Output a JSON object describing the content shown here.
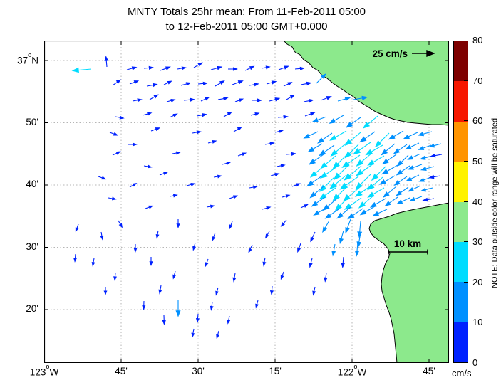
{
  "title": {
    "line1": "MNTY Totals 25hr mean: From 11-Feb-2011 05:00",
    "line2": "to 12-Feb-2011 05:00 GMT+0.000"
  },
  "axes": {
    "x_ticks": [
      {
        "px": 0,
        "label": "123°W"
      },
      {
        "px": 108,
        "label": "45'"
      },
      {
        "px": 216,
        "label": "30'"
      },
      {
        "px": 324,
        "label": "15'"
      },
      {
        "px": 432,
        "label": "122°W"
      },
      {
        "px": 540,
        "label": "45'"
      }
    ],
    "y_ticks": [
      {
        "px": 28,
        "label": "37°N"
      },
      {
        "px": 115.5,
        "label": "50'"
      },
      {
        "px": 203,
        "label": "40'"
      },
      {
        "px": 290.5,
        "label": "30'"
      },
      {
        "px": 378,
        "label": "20'"
      }
    ]
  },
  "colorbar": {
    "units": "cm/s",
    "note": "NOTE: Data outside color range will be saturated.",
    "ticks": [
      0,
      10,
      20,
      30,
      40,
      50,
      60,
      70,
      80
    ],
    "colors_bottom_to_top": [
      "#0022ff",
      "#0090ff",
      "#00dcff",
      "#8ce98c",
      "#fff200",
      "#ff9400",
      "#f61700",
      "#7e0000"
    ]
  },
  "map": {
    "land_color": "#8ce98c",
    "coast_color": "#000000",
    "grid_color": "#b5b5b5",
    "land_polygons": [
      [
        [
          336,
          0
        ],
        [
          341,
          5
        ],
        [
          348,
          9
        ],
        [
          352,
          16
        ],
        [
          359,
          20
        ],
        [
          364,
          27
        ],
        [
          371,
          31
        ],
        [
          377,
          38
        ],
        [
          384,
          42
        ],
        [
          390,
          49
        ],
        [
          397,
          53
        ],
        [
          404,
          59
        ],
        [
          411,
          64
        ],
        [
          419,
          69
        ],
        [
          426,
          74
        ],
        [
          434,
          79
        ],
        [
          441,
          85
        ],
        [
          449,
          90
        ],
        [
          457,
          95
        ],
        [
          465,
          100
        ],
        [
          474,
          104
        ],
        [
          483,
          108
        ],
        [
          492,
          111
        ],
        [
          501,
          113
        ],
        [
          511,
          115
        ],
        [
          521,
          116
        ],
        [
          532,
          117
        ],
        [
          544,
          118
        ],
        [
          556,
          118
        ],
        [
          568,
          119
        ],
        [
          568,
          0
        ]
      ],
      [
        [
          568,
          228
        ],
        [
          552,
          231
        ],
        [
          536,
          234
        ],
        [
          520,
          237
        ],
        [
          506,
          240
        ],
        [
          494,
          243
        ],
        [
          484,
          247
        ],
        [
          474,
          250
        ],
        [
          464,
          253
        ],
        [
          458,
          258
        ],
        [
          456,
          264
        ],
        [
          458,
          270
        ],
        [
          463,
          276
        ],
        [
          470,
          281
        ],
        [
          477,
          286
        ],
        [
          482,
          292
        ],
        [
          485,
          299
        ],
        [
          483,
          306
        ],
        [
          479,
          313
        ],
        [
          476,
          322
        ],
        [
          474,
          332
        ],
        [
          473,
          342
        ],
        [
          474,
          352
        ],
        [
          477,
          362
        ],
        [
          480,
          372
        ],
        [
          484,
          382
        ],
        [
          487,
          392
        ],
        [
          489,
          402
        ],
        [
          491,
          412
        ],
        [
          492,
          422
        ],
        [
          493,
          432
        ],
        [
          494,
          442
        ],
        [
          495,
          453
        ],
        [
          568,
          453
        ]
      ]
    ]
  },
  "annotations": {
    "speed_scale": {
      "label": "25 cm/s",
      "value_cm_s": 25
    },
    "distance_scale": {
      "label": "10 km",
      "value_km": 10
    }
  },
  "chart_data": {
    "type": "quiver-vector-map",
    "title": "MNTY Totals 25hr mean surface currents",
    "x_range": [
      "123°W",
      "121°41'W"
    ],
    "y_range": [
      "36°12'N",
      "37°03'N"
    ],
    "units": "cm/s",
    "coords_note": "arrows given as [x_px, y_px, direction_deg_ccw_from_east, speed_cm_s] in 568x453 plot space",
    "arrows": [
      [
        66,
        40,
        185,
        20
      ],
      [
        88,
        37,
        95,
        8
      ],
      [
        116,
        41,
        15,
        7
      ],
      [
        140,
        39,
        5,
        6
      ],
      [
        163,
        42,
        20,
        8
      ],
      [
        187,
        40,
        10,
        5
      ],
      [
        210,
        38,
        30,
        7
      ],
      [
        234,
        41,
        15,
        9
      ],
      [
        258,
        40,
        0,
        6
      ],
      [
        282,
        42,
        25,
        7
      ],
      [
        305,
        39,
        10,
        5
      ],
      [
        329,
        41,
        20,
        8
      ],
      [
        352,
        40,
        5,
        6
      ],
      [
        96,
        63,
        35,
        7
      ],
      [
        120,
        61,
        20,
        6
      ],
      [
        144,
        64,
        10,
        8
      ],
      [
        168,
        62,
        25,
        5
      ],
      [
        192,
        63,
        15,
        7
      ],
      [
        216,
        61,
        5,
        6
      ],
      [
        240,
        64,
        30,
        8
      ],
      [
        264,
        62,
        20,
        9
      ],
      [
        288,
        63,
        10,
        6
      ],
      [
        312,
        61,
        15,
        7
      ],
      [
        336,
        64,
        25,
        6
      ],
      [
        360,
        62,
        10,
        8
      ],
      [
        382,
        60,
        45,
        12
      ],
      [
        124,
        85,
        10,
        6
      ],
      [
        148,
        83,
        30,
        7
      ],
      [
        172,
        86,
        15,
        5
      ],
      [
        196,
        84,
        5,
        8
      ],
      [
        220,
        85,
        25,
        6
      ],
      [
        244,
        83,
        10,
        7
      ],
      [
        268,
        86,
        20,
        5
      ],
      [
        292,
        84,
        0,
        6
      ],
      [
        316,
        85,
        15,
        8
      ],
      [
        340,
        83,
        30,
        6
      ],
      [
        364,
        86,
        10,
        7
      ],
      [
        388,
        84,
        20,
        9
      ],
      [
        412,
        85,
        15,
        11
      ],
      [
        434,
        83,
        10,
        13
      ],
      [
        100,
        107,
        350,
        5
      ],
      [
        138,
        105,
        15,
        6
      ],
      [
        176,
        108,
        25,
        5
      ],
      [
        214,
        106,
        10,
        7
      ],
      [
        252,
        107,
        30,
        6
      ],
      [
        290,
        105,
        15,
        5
      ],
      [
        328,
        108,
        5,
        7
      ],
      [
        366,
        106,
        20,
        8
      ],
      [
        396,
        107,
        200,
        14
      ],
      [
        420,
        105,
        210,
        16
      ],
      [
        444,
        108,
        215,
        18
      ],
      [
        468,
        106,
        220,
        20
      ],
      [
        92,
        129,
        340,
        5
      ],
      [
        150,
        127,
        20,
        6
      ],
      [
        208,
        130,
        10,
        5
      ],
      [
        266,
        128,
        30,
        6
      ],
      [
        324,
        129,
        15,
        5
      ],
      [
        384,
        128,
        205,
        15
      ],
      [
        404,
        130,
        215,
        18
      ],
      [
        424,
        127,
        210,
        20
      ],
      [
        444,
        129,
        220,
        22
      ],
      [
        464,
        128,
        215,
        19
      ],
      [
        484,
        130,
        225,
        21
      ],
      [
        504,
        127,
        210,
        17
      ],
      [
        524,
        129,
        205,
        15
      ],
      [
        544,
        128,
        195,
        13
      ],
      [
        118,
        146,
        0,
        5
      ],
      [
        230,
        144,
        15,
        5
      ],
      [
        310,
        146,
        10,
        6
      ],
      [
        390,
        145,
        210,
        16
      ],
      [
        407,
        147,
        215,
        19
      ],
      [
        424,
        144,
        220,
        22
      ],
      [
        441,
        146,
        225,
        20
      ],
      [
        458,
        143,
        215,
        23
      ],
      [
        475,
        147,
        210,
        21
      ],
      [
        492,
        145,
        220,
        18
      ],
      [
        509,
        146,
        215,
        16
      ],
      [
        526,
        144,
        205,
        14
      ],
      [
        543,
        147,
        200,
        12
      ],
      [
        557,
        145,
        195,
        10
      ],
      [
        96,
        161,
        25,
        5
      ],
      [
        180,
        159,
        10,
        4
      ],
      [
        272,
        162,
        20,
        5
      ],
      [
        340,
        160,
        5,
        6
      ],
      [
        392,
        160,
        215,
        18
      ],
      [
        409,
        162,
        220,
        21
      ],
      [
        426,
        159,
        225,
        23
      ],
      [
        443,
        161,
        215,
        24
      ],
      [
        460,
        158,
        220,
        22
      ],
      [
        477,
        162,
        210,
        20
      ],
      [
        494,
        160,
        215,
        17
      ],
      [
        511,
        161,
        225,
        15
      ],
      [
        528,
        159,
        205,
        13
      ],
      [
        545,
        162,
        195,
        11
      ],
      [
        558,
        160,
        190,
        9
      ],
      [
        140,
        176,
        350,
        4
      ],
      [
        250,
        174,
        15,
        5
      ],
      [
        326,
        177,
        10,
        5
      ],
      [
        394,
        175,
        220,
        20
      ],
      [
        411,
        177,
        215,
        22
      ],
      [
        428,
        174,
        225,
        24
      ],
      [
        445,
        176,
        220,
        25
      ],
      [
        462,
        173,
        215,
        23
      ],
      [
        479,
        177,
        225,
        21
      ],
      [
        496,
        175,
        210,
        19
      ],
      [
        513,
        176,
        215,
        16
      ],
      [
        530,
        174,
        200,
        14
      ],
      [
        547,
        177,
        195,
        12
      ],
      [
        76,
        191,
        340,
        4
      ],
      [
        162,
        189,
        20,
        5
      ],
      [
        238,
        192,
        10,
        4
      ],
      [
        318,
        190,
        15,
        5
      ],
      [
        390,
        190,
        215,
        19
      ],
      [
        407,
        192,
        225,
        22
      ],
      [
        424,
        189,
        220,
        24
      ],
      [
        441,
        191,
        215,
        25
      ],
      [
        458,
        188,
        225,
        23
      ],
      [
        475,
        192,
        220,
        21
      ],
      [
        492,
        190,
        210,
        18
      ],
      [
        509,
        191,
        215,
        15
      ],
      [
        526,
        189,
        205,
        13
      ],
      [
        543,
        192,
        200,
        11
      ],
      [
        556,
        190,
        190,
        9
      ],
      [
        120,
        206,
        30,
        4
      ],
      [
        200,
        204,
        15,
        5
      ],
      [
        288,
        207,
        10,
        4
      ],
      [
        348,
        205,
        20,
        5
      ],
      [
        392,
        205,
        220,
        18
      ],
      [
        409,
        207,
        215,
        21
      ],
      [
        426,
        204,
        225,
        23
      ],
      [
        443,
        206,
        220,
        24
      ],
      [
        460,
        203,
        215,
        22
      ],
      [
        477,
        207,
        210,
        20
      ],
      [
        494,
        205,
        220,
        17
      ],
      [
        511,
        206,
        215,
        14
      ],
      [
        528,
        204,
        205,
        12
      ],
      [
        545,
        207,
        195,
        10
      ],
      [
        90,
        221,
        350,
        4
      ],
      [
        176,
        219,
        10,
        4
      ],
      [
        260,
        222,
        20,
        5
      ],
      [
        334,
        220,
        15,
        4
      ],
      [
        394,
        220,
        215,
        16
      ],
      [
        411,
        222,
        220,
        19
      ],
      [
        428,
        219,
        225,
        21
      ],
      [
        445,
        221,
        215,
        22
      ],
      [
        462,
        218,
        220,
        20
      ],
      [
        479,
        222,
        210,
        18
      ],
      [
        496,
        220,
        215,
        15
      ],
      [
        513,
        221,
        205,
        13
      ],
      [
        530,
        219,
        200,
        11
      ],
      [
        547,
        222,
        190,
        9
      ],
      [
        142,
        236,
        20,
        4
      ],
      [
        228,
        234,
        10,
        4
      ],
      [
        306,
        237,
        15,
        5
      ],
      [
        360,
        235,
        25,
        4
      ],
      [
        396,
        235,
        210,
        14
      ],
      [
        413,
        237,
        215,
        16
      ],
      [
        430,
        234,
        220,
        18
      ],
      [
        447,
        236,
        215,
        19
      ],
      [
        464,
        233,
        210,
        17
      ],
      [
        481,
        237,
        205,
        15
      ],
      [
        104,
        253,
        300,
        4
      ],
      [
        188,
        251,
        270,
        5
      ],
      [
        264,
        254,
        250,
        4
      ],
      [
        340,
        252,
        230,
        5
      ],
      [
        400,
        253,
        240,
        12
      ],
      [
        430,
        251,
        250,
        14
      ],
      [
        444,
        254,
        265,
        16
      ],
      [
        48,
        258,
        250,
        4
      ],
      [
        80,
        269,
        280,
        4
      ],
      [
        160,
        267,
        260,
        4
      ],
      [
        240,
        270,
        250,
        5
      ],
      [
        316,
        268,
        240,
        4
      ],
      [
        380,
        269,
        245,
        8
      ],
      [
        420,
        267,
        255,
        12
      ],
      [
        444,
        270,
        260,
        14
      ],
      [
        128,
        286,
        270,
        4
      ],
      [
        212,
        284,
        255,
        4
      ],
      [
        292,
        287,
        245,
        5
      ],
      [
        360,
        285,
        250,
        6
      ],
      [
        408,
        286,
        260,
        10
      ],
      [
        440,
        284,
        265,
        12
      ],
      [
        70,
        306,
        260,
        4
      ],
      [
        150,
        304,
        270,
        5
      ],
      [
        230,
        307,
        250,
        4
      ],
      [
        310,
        305,
        260,
        5
      ],
      [
        376,
        306,
        255,
        6
      ],
      [
        420,
        304,
        265,
        8
      ],
      [
        44,
        300,
        265,
        4
      ],
      [
        100,
        326,
        265,
        4
      ],
      [
        184,
        324,
        255,
        4
      ],
      [
        268,
        327,
        260,
        5
      ],
      [
        336,
        325,
        250,
        4
      ],
      [
        396,
        326,
        262,
        6
      ],
      [
        86,
        346,
        270,
        4
      ],
      [
        164,
        344,
        260,
        5
      ],
      [
        244,
        347,
        255,
        4
      ],
      [
        320,
        345,
        265,
        5
      ],
      [
        380,
        346,
        258,
        5
      ],
      [
        140,
        366,
        268,
        5
      ],
      [
        188,
        364,
        270,
        17
      ],
      [
        236,
        367,
        262,
        5
      ],
      [
        300,
        365,
        255,
        4
      ],
      [
        168,
        386,
        272,
        6
      ],
      [
        216,
        384,
        265,
        5
      ],
      [
        260,
        387,
        258,
        4
      ],
      [
        210,
        405,
        260,
        5
      ],
      [
        245,
        408,
        255,
        4
      ]
    ]
  }
}
